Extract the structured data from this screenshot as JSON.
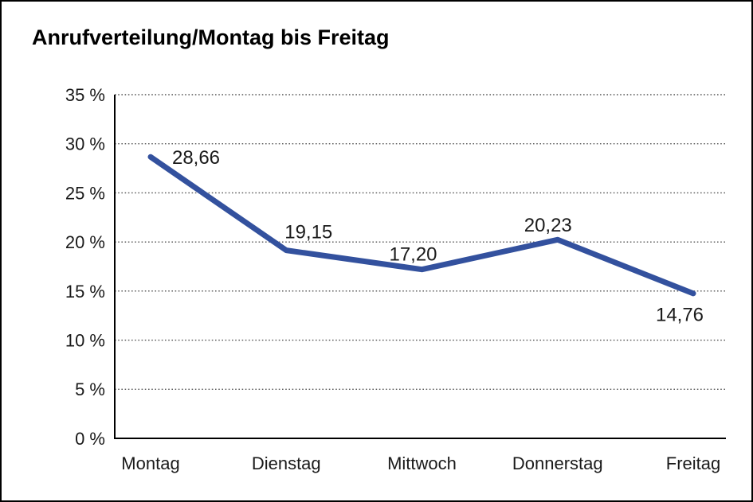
{
  "title": "Anrufverteilung/Montag bis Freitag",
  "chart_data": {
    "type": "line",
    "title": "Anrufverteilung/Montag bis Freitag",
    "categories": [
      "Montag",
      "Dienstag",
      "Mittwoch",
      "Donnerstag",
      "Freitag"
    ],
    "values": [
      28.66,
      19.15,
      17.2,
      20.23,
      14.76
    ],
    "value_labels": [
      "28,66",
      "19,15",
      "17,20",
      "20,23",
      "14,76"
    ],
    "series_name": "Anrufverteilung",
    "xlabel": "",
    "ylabel": "",
    "ylim": [
      0,
      35
    ],
    "y_tick_values": [
      0,
      5,
      10,
      15,
      20,
      25,
      30,
      35
    ],
    "y_tick_labels": [
      "0 %",
      "5 %",
      "10 %",
      "15 %",
      "20 %",
      "25 %",
      "30 %",
      "35 %"
    ],
    "grid": "horizontal-dotted",
    "legend_position": "none",
    "colors": {
      "line": "#33519E",
      "axis": "#000000",
      "gridline": "#555555",
      "label_text": "#1a1a1a",
      "frame_border": "#000000",
      "background": "#ffffff"
    }
  }
}
